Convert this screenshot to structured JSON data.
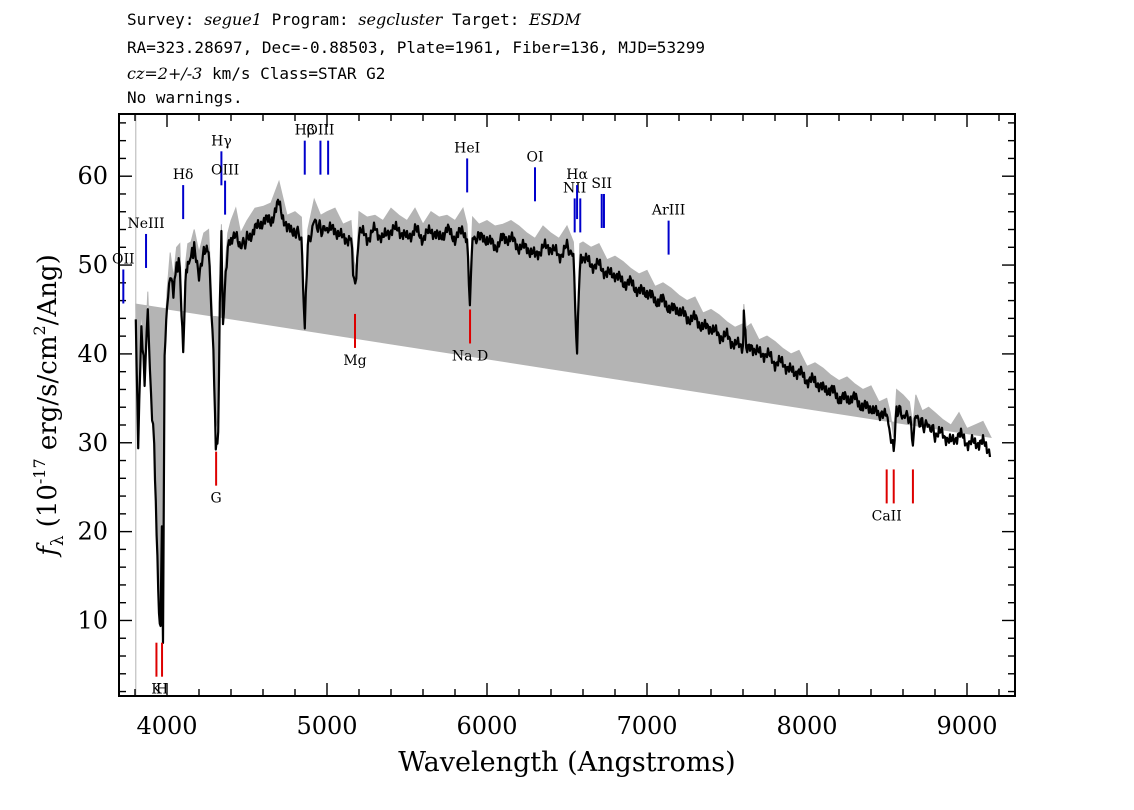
{
  "header": {
    "line1_prefix": "Survey: ",
    "survey": "segue1",
    "line1_program_label": " Program: ",
    "program": "segcluster",
    "line1_target_label": " Target: ",
    "target": "ESDM",
    "line2": "RA=323.28697, Dec=-0.88503, Plate=1961, Fiber=136, MJD=53299",
    "line3_cz": "cz=2+/-3",
    "line3_rest": " km/s Class=STAR G2",
    "line4": "No warnings."
  },
  "chart_data": {
    "type": "line",
    "xlabel": "Wavelength (Angstroms)",
    "ylabel_symbol": "f",
    "ylabel_sub": "λ",
    "ylabel_pre": "(10",
    "ylabel_exp": "-17",
    "ylabel_mid": " erg/s/cm",
    "ylabel_exp2": "2",
    "ylabel_post": "/Ang)",
    "xlim": [
      3700,
      9300
    ],
    "ylim": [
      1.5,
      67
    ],
    "x_ticks": [
      4000,
      5000,
      6000,
      7000,
      8000,
      9000
    ],
    "y_ticks": [
      10,
      20,
      30,
      40,
      50,
      60
    ],
    "colors": {
      "flux": "#000000",
      "error": "#b4b4b4",
      "emission": "#0000cc",
      "absorption": "#dd0000",
      "frame": "#000000"
    },
    "flux_x": [
      3805,
      3820,
      3840,
      3860,
      3880,
      3900,
      3920,
      3935,
      3950,
      3960,
      3968,
      3975,
      3985,
      4000,
      4020,
      4040,
      4060,
      4080,
      4101,
      4115,
      4130,
      4150,
      4170,
      4200,
      4230,
      4260,
      4290,
      4305,
      4320,
      4330,
      4340,
      4350,
      4360,
      4380,
      4400,
      4430,
      4460,
      4500,
      4550,
      4600,
      4650,
      4700,
      4750,
      4800,
      4840,
      4861,
      4880,
      4920,
      4960,
      5000,
      5050,
      5100,
      5150,
      5170,
      5183,
      5200,
      5250,
      5300,
      5350,
      5400,
      5450,
      5500,
      5550,
      5600,
      5650,
      5700,
      5750,
      5800,
      5850,
      5875,
      5893,
      5910,
      5950,
      6000,
      6050,
      6100,
      6150,
      6200,
      6250,
      6300,
      6350,
      6400,
      6450,
      6500,
      6540,
      6563,
      6580,
      6600,
      6650,
      6700,
      6750,
      6800,
      6850,
      6900,
      6950,
      7000,
      7050,
      7100,
      7150,
      7200,
      7250,
      7300,
      7350,
      7400,
      7450,
      7500,
      7550,
      7600,
      7605,
      7620,
      7650,
      7700,
      7750,
      7800,
      7850,
      7900,
      7950,
      8000,
      8050,
      8100,
      8150,
      8200,
      8250,
      8300,
      8350,
      8400,
      8450,
      8498,
      8520,
      8542,
      8560,
      8600,
      8640,
      8662,
      8680,
      8720,
      8760,
      8800,
      8850,
      8900,
      8950,
      9000,
      9050,
      9100,
      9150,
      9200
    ],
    "flux_y": [
      44,
      30,
      43,
      37,
      45,
      35,
      30,
      20,
      10,
      9,
      20,
      8,
      40,
      45,
      49,
      47,
      50,
      50,
      40,
      48,
      50,
      51,
      52,
      49,
      52,
      52,
      40,
      30,
      31,
      45,
      53,
      43,
      47,
      52,
      53,
      54,
      52,
      53,
      54,
      55,
      55,
      57,
      54,
      54,
      53,
      43,
      52,
      55,
      54,
      54,
      54,
      53,
      53,
      48,
      48,
      54,
      53,
      54,
      53,
      54,
      54,
      53,
      54,
      53,
      54,
      53,
      54,
      53,
      54,
      53,
      46,
      53,
      53,
      53,
      52,
      53,
      53,
      52,
      52,
      51,
      52,
      52,
      51,
      52,
      51,
      40,
      50,
      51,
      50,
      50,
      49,
      49,
      48,
      48,
      47,
      47,
      46,
      46,
      45,
      45,
      44,
      44,
      43,
      43,
      42,
      42,
      41,
      41,
      44,
      41,
      41,
      40,
      40,
      39,
      39,
      38,
      38,
      37,
      37,
      36,
      36,
      35,
      35,
      35,
      34,
      34,
      33,
      33,
      31,
      29,
      34,
      33,
      33,
      30,
      33,
      32,
      32,
      31,
      31,
      30,
      31,
      30,
      30,
      30,
      29
    ],
    "annotations": [
      {
        "label": "OII",
        "wavelength": 3727,
        "kind": "emission",
        "flux": 49.5
      },
      {
        "label": "NeIII",
        "wavelength": 3869,
        "kind": "emission",
        "flux": 53.5
      },
      {
        "label": "Hδ",
        "wavelength": 4101,
        "kind": "emission",
        "flux": 59.0
      },
      {
        "label": "Hγ",
        "wavelength": 4340,
        "kind": "emission",
        "flux": 62.8
      },
      {
        "label": "OIII",
        "wavelength": 4363,
        "kind": "emission",
        "flux": 59.5
      },
      {
        "label": "Hβ",
        "wavelength": 4861,
        "kind": "emission",
        "flux": 64.0
      },
      {
        "label": "OIII",
        "wavelength": 4959,
        "kind": "emission",
        "flux": 64.0
      },
      {
        "label": "OIII",
        "wavelength": 5007,
        "kind": "emission",
        "flux": 64.0
      },
      {
        "label": "HeI",
        "wavelength": 5876,
        "kind": "emission",
        "flux": 62.0
      },
      {
        "label": "OI",
        "wavelength": 6300,
        "kind": "emission",
        "flux": 61.0
      },
      {
        "label": "NII",
        "wavelength": 6548,
        "kind": "emission",
        "flux": 57.5
      },
      {
        "label": "Hα",
        "wavelength": 6563,
        "kind": "emission",
        "flux": 59.0
      },
      {
        "label": "NII",
        "wavelength": 6583,
        "kind": "emission",
        "flux": 57.5
      },
      {
        "label": "SII",
        "wavelength": 6717,
        "kind": "emission",
        "flux": 58.0
      },
      {
        "label": "SII",
        "wavelength": 6731,
        "kind": "emission",
        "flux": 58.0
      },
      {
        "label": "ArIII",
        "wavelength": 7135,
        "kind": "emission",
        "flux": 55.0
      },
      {
        "label": "K",
        "wavelength": 3934,
        "kind": "absorption",
        "flux": 7.5
      },
      {
        "label": "H",
        "wavelength": 3969,
        "kind": "absorption",
        "flux": 7.5
      },
      {
        "label": "G",
        "wavelength": 4307,
        "kind": "absorption",
        "flux": 29.0
      },
      {
        "label": "Mg",
        "wavelength": 5175,
        "kind": "absorption",
        "flux": 44.5
      },
      {
        "label": "Na D",
        "wavelength": 5894,
        "kind": "absorption",
        "flux": 45.0
      },
      {
        "label": "CaII",
        "wavelength": 8498,
        "kind": "absorption",
        "flux": 27.0
      },
      {
        "label": "CaII",
        "wavelength": 8542,
        "kind": "absorption",
        "flux": 27.0
      },
      {
        "label": "CaII",
        "wavelength": 8662,
        "kind": "absorption",
        "flux": 27.0
      }
    ]
  }
}
